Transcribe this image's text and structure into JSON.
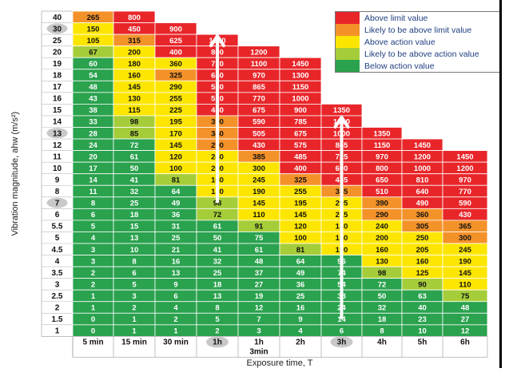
{
  "chart_data": {
    "type": "heatmap",
    "title": "",
    "ylabel": "Vibration magnitude, ahw (m/s²)",
    "xlabel": "Exposure time, T",
    "rows": [
      "40",
      "30",
      "25",
      "20",
      "19",
      "18",
      "17",
      "16",
      "15",
      "14",
      "13",
      "12",
      "11",
      "10",
      "9",
      "8",
      "7",
      "6",
      "5.5",
      "5",
      "4.5",
      "4",
      "3.5",
      "3",
      "2.5",
      "2",
      "1.5",
      "1"
    ],
    "columns": [
      "5 min",
      "15 min",
      "30 min",
      "1h",
      "1h 3min",
      "2h",
      "3h",
      "4h",
      "5h",
      "6h"
    ],
    "highlighted_rows": [
      "30",
      "13",
      "7"
    ],
    "highlighted_columns": [
      "1h",
      "3h"
    ],
    "values": [
      [
        265,
        800,
        null,
        null,
        null,
        null,
        null,
        null,
        null,
        null
      ],
      [
        150,
        450,
        900,
        null,
        null,
        null,
        null,
        null,
        null,
        null
      ],
      [
        105,
        315,
        625,
        1250,
        null,
        null,
        null,
        null,
        null,
        null
      ],
      [
        67,
        200,
        400,
        800,
        1200,
        null,
        null,
        null,
        null,
        null
      ],
      [
        60,
        180,
        360,
        720,
        1100,
        1450,
        null,
        null,
        null,
        null
      ],
      [
        54,
        160,
        325,
        650,
        970,
        1300,
        null,
        null,
        null,
        null
      ],
      [
        48,
        145,
        290,
        580,
        865,
        1150,
        null,
        null,
        null,
        null
      ],
      [
        43,
        130,
        255,
        510,
        770,
        1000,
        null,
        null,
        null,
        null
      ],
      [
        38,
        115,
        225,
        450,
        675,
        900,
        1350,
        null,
        null,
        null
      ],
      [
        33,
        98,
        195,
        390,
        590,
        785,
        1200,
        null,
        null,
        null
      ],
      [
        28,
        85,
        170,
        340,
        505,
        675,
        1000,
        1350,
        null,
        null
      ],
      [
        24,
        72,
        145,
        290,
        430,
        575,
        865,
        1150,
        1450,
        null
      ],
      [
        20,
        61,
        120,
        240,
        385,
        485,
        725,
        970,
        1200,
        1450
      ],
      [
        17,
        50,
        100,
        200,
        300,
        400,
        600,
        800,
        1000,
        1200
      ],
      [
        14,
        41,
        81,
        160,
        245,
        325,
        485,
        650,
        810,
        970
      ],
      [
        11,
        32,
        64,
        130,
        190,
        255,
        385,
        510,
        640,
        770
      ],
      [
        8,
        25,
        49,
        98,
        145,
        195,
        295,
        390,
        490,
        590
      ],
      [
        6,
        18,
        36,
        72,
        110,
        145,
        215,
        290,
        360,
        430
      ],
      [
        5,
        15,
        31,
        61,
        91,
        120,
        180,
        240,
        305,
        365
      ],
      [
        4,
        13,
        25,
        50,
        75,
        100,
        150,
        200,
        250,
        300
      ],
      [
        3,
        10,
        21,
        41,
        61,
        81,
        100,
        160,
        205,
        245
      ],
      [
        3,
        8,
        16,
        32,
        48,
        64,
        96,
        130,
        160,
        190
      ],
      [
        2,
        6,
        13,
        25,
        37,
        49,
        74,
        98,
        125,
        145
      ],
      [
        2,
        5,
        9,
        18,
        27,
        36,
        54,
        72,
        90,
        110
      ],
      [
        1,
        3,
        6,
        13,
        19,
        25,
        38,
        50,
        63,
        75
      ],
      [
        1,
        2,
        4,
        8,
        12,
        16,
        24,
        32,
        40,
        48
      ],
      [
        0,
        1,
        2,
        5,
        7,
        9,
        14,
        18,
        23,
        27
      ],
      [
        0,
        1,
        1,
        2,
        3,
        4,
        6,
        8,
        10,
        12
      ]
    ],
    "categories": [
      [
        "O",
        "R",
        null,
        null,
        null,
        null,
        null,
        null,
        null,
        null
      ],
      [
        "Y",
        "R",
        "R",
        null,
        null,
        null,
        null,
        null,
        null,
        null
      ],
      [
        "Y",
        "O",
        "R",
        "R",
        null,
        null,
        null,
        null,
        null,
        null
      ],
      [
        "LG",
        "Y",
        "R",
        "R",
        "R",
        null,
        null,
        null,
        null,
        null
      ],
      [
        "G",
        "Y",
        "Y",
        "R",
        "R",
        "R",
        null,
        null,
        null,
        null
      ],
      [
        "G",
        "Y",
        "O",
        "R",
        "R",
        "R",
        null,
        null,
        null,
        null
      ],
      [
        "G",
        "Y",
        "Y",
        "R",
        "R",
        "R",
        null,
        null,
        null,
        null
      ],
      [
        "G",
        "Y",
        "Y",
        "R",
        "R",
        "R",
        null,
        null,
        null,
        null
      ],
      [
        "G",
        "Y",
        "Y",
        "R",
        "R",
        "R",
        "R",
        null,
        null,
        null
      ],
      [
        "G",
        "LG",
        "Y",
        "O",
        "R",
        "R",
        "R",
        null,
        null,
        null
      ],
      [
        "G",
        "LG",
        "Y",
        "O",
        "R",
        "R",
        "R",
        "R",
        null,
        null
      ],
      [
        "G",
        "G",
        "Y",
        "O",
        "R",
        "R",
        "R",
        "R",
        "R",
        null
      ],
      [
        "G",
        "G",
        "Y",
        "Y",
        "O",
        "R",
        "R",
        "R",
        "R",
        "R"
      ],
      [
        "G",
        "G",
        "Y",
        "Y",
        "Y",
        "R",
        "R",
        "R",
        "R",
        "R"
      ],
      [
        "G",
        "G",
        "LG",
        "Y",
        "Y",
        "O",
        "R",
        "R",
        "R",
        "R"
      ],
      [
        "G",
        "G",
        "G",
        "Y",
        "Y",
        "Y",
        "O",
        "R",
        "R",
        "R"
      ],
      [
        "G",
        "G",
        "G",
        "LG",
        "Y",
        "Y",
        "Y",
        "O",
        "R",
        "R"
      ],
      [
        "G",
        "G",
        "G",
        "LG",
        "Y",
        "Y",
        "Y",
        "O",
        "O",
        "R"
      ],
      [
        "G",
        "G",
        "G",
        "G",
        "LG",
        "Y",
        "Y",
        "Y",
        "O",
        "O"
      ],
      [
        "G",
        "G",
        "G",
        "G",
        "G",
        "Y",
        "Y",
        "Y",
        "Y",
        "O"
      ],
      [
        "G",
        "G",
        "G",
        "G",
        "G",
        "LG",
        "Y",
        "Y",
        "Y",
        "Y"
      ],
      [
        "G",
        "G",
        "G",
        "G",
        "G",
        "G",
        "G",
        "Y",
        "Y",
        "Y"
      ],
      [
        "G",
        "G",
        "G",
        "G",
        "G",
        "G",
        "G",
        "LG",
        "Y",
        "Y"
      ],
      [
        "G",
        "G",
        "G",
        "G",
        "G",
        "G",
        "G",
        "G",
        "LG",
        "Y"
      ],
      [
        "G",
        "G",
        "G",
        "G",
        "G",
        "G",
        "G",
        "G",
        "G",
        "LG"
      ],
      [
        "G",
        "G",
        "G",
        "G",
        "G",
        "G",
        "G",
        "G",
        "G",
        "G"
      ],
      [
        "G",
        "G",
        "G",
        "G",
        "G",
        "G",
        "G",
        "G",
        "G",
        "G"
      ],
      [
        "G",
        "G",
        "G",
        "G",
        "G",
        "G",
        "G",
        "G",
        "G",
        "G"
      ]
    ],
    "legend": [
      {
        "key": "R",
        "label": "Above limit value",
        "color": "#e8262a"
      },
      {
        "key": "O",
        "label": "Likely to be above limit value",
        "color": "#f4922a"
      },
      {
        "key": "Y",
        "label": "Above action value",
        "color": "#fce600"
      },
      {
        "key": "LG",
        "label": "Likely to be above action value",
        "color": "#a5cd39"
      },
      {
        "key": "G",
        "label": "Below action value",
        "color": "#2aa24e"
      }
    ],
    "legend_position": "top-right",
    "arrows": [
      {
        "column": "1h",
        "from_row": "7",
        "to_row": "25"
      },
      {
        "column": "3h",
        "from_row": "1.5",
        "to_row": "14"
      }
    ]
  }
}
